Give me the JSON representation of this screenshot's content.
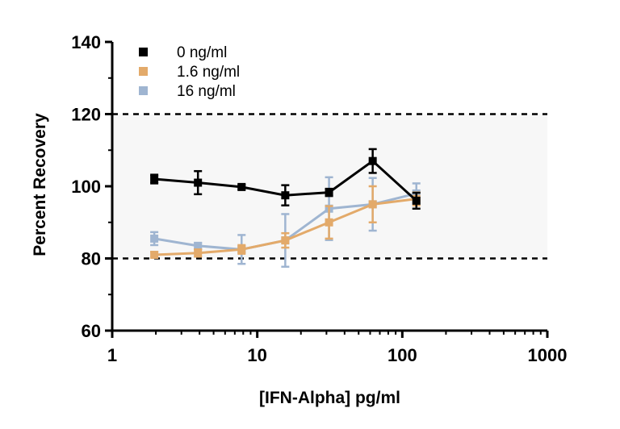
{
  "chart_data": {
    "type": "line",
    "xlabel": "[IFN-Alpha] pg/ml",
    "ylabel": "Percent  Recovery",
    "x_scale": "log",
    "xlim": [
      1,
      1000
    ],
    "ylim": [
      60,
      140
    ],
    "x_tick_labels": [
      "1",
      "10",
      "100",
      "1000"
    ],
    "y_tick_labels": [
      "60",
      "80",
      "100",
      "120",
      "140"
    ],
    "acceptance_band": [
      80,
      120
    ],
    "band_color": "#f7f7f7",
    "legend_position": "top-left",
    "series": [
      {
        "name": "0 ng/ml",
        "color": "#000000",
        "x": [
          1.95,
          3.9,
          7.8,
          15.6,
          31.25,
          62.5,
          125
        ],
        "y": [
          102.0,
          101.0,
          99.8,
          97.5,
          98.3,
          107.0,
          96.0
        ],
        "err": [
          1.2,
          3.2,
          0.6,
          2.8,
          1.0,
          3.3,
          2.2
        ]
      },
      {
        "name": "1.6 ng/ml",
        "color": "#e3aa6a",
        "x": [
          1.95,
          3.9,
          7.8,
          15.6,
          31.25,
          62.5,
          125
        ],
        "y": [
          81.0,
          81.5,
          82.5,
          85.0,
          90.0,
          95.0,
          96.5
        ],
        "err": [
          0.8,
          1.0,
          1.2,
          2.0,
          4.5,
          5.0,
          1.8
        ]
      },
      {
        "name": "16 ng/ml",
        "color": "#9fb5d1",
        "x": [
          1.95,
          3.9,
          7.8,
          15.6,
          31.25,
          62.5,
          125
        ],
        "y": [
          85.5,
          83.5,
          82.5,
          85.0,
          93.8,
          95.0,
          98.0
        ],
        "err": [
          1.8,
          0.8,
          4.0,
          7.3,
          8.7,
          7.3,
          2.8
        ]
      }
    ]
  }
}
